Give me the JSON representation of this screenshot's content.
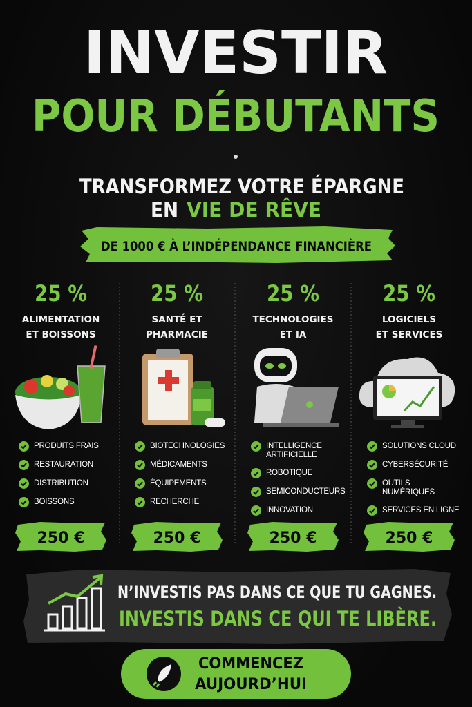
{
  "header": {
    "title_line1": "INVESTIR",
    "title_line2": "POUR DÉBUTANTS"
  },
  "subtitle": {
    "line1": "TRANSFORMEZ VOTRE ÉPARGNE",
    "line2_start": "EN",
    "line2_highlight": "VIE DE RÊVE"
  },
  "banner": "DE 1000 € À L’INDÉPENDANCE FINANCIÈRE",
  "columns": [
    {
      "percent": "25 %",
      "name": [
        "ALIMENTATION",
        "ET BOISSONS"
      ],
      "items": [
        "PRODUITS FRAIS",
        "RESTAURATION",
        "DISTRIBUTION",
        "BOISSONS"
      ],
      "amount": "250 €"
    },
    {
      "percent": "25 %",
      "name": [
        "SANTÉ ET",
        "PHARMACIE"
      ],
      "items": [
        "BIOTECHNOLOGIES",
        "MÉDICAMENTS",
        "ÉQUIPEMENTS",
        "RECHERCHE"
      ],
      "amount": "250 €"
    },
    {
      "percent": "25 %",
      "name": [
        "TECHNOLOGIES",
        "ET IA"
      ],
      "items": [
        "INTELLIGENCE ARTIFICIELLE",
        "ROBOTIQUE",
        "SEMICONDUCTEURS",
        "INNOVATION"
      ],
      "amount": "250 €"
    },
    {
      "percent": "25 %",
      "name": [
        "LOGICIELS",
        "ET SERVICES"
      ],
      "items": [
        "SOLUTIONS CLOUD",
        "CYBERSÉCURITÉ",
        "OUTILS NUMÉRIQUES",
        "SERVICES EN LIGNE"
      ],
      "amount": "250 €"
    }
  ],
  "quote": {
    "line1": "N’INVESTIS PAS DANS CE QUE TU GAGNES.",
    "line2": "INVESTIS DANS CE QUI TE LIBÈRE."
  },
  "button": {
    "line1": "COMMENCEZ",
    "line2": "AUJOURD’HUI"
  }
}
